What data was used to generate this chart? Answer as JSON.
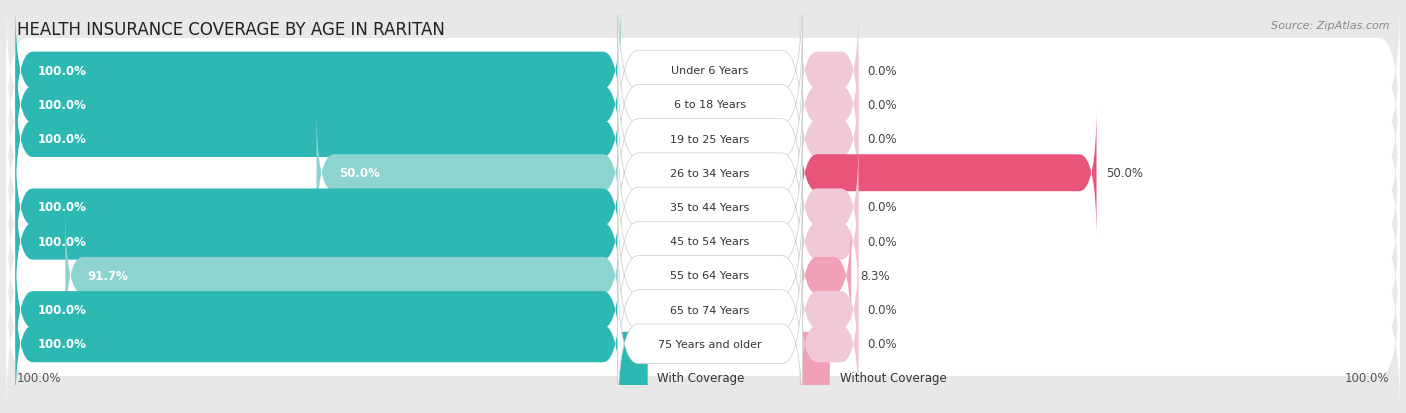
{
  "title": "HEALTH INSURANCE COVERAGE BY AGE IN RARITAN",
  "source": "Source: ZipAtlas.com",
  "categories": [
    "Under 6 Years",
    "6 to 18 Years",
    "19 to 25 Years",
    "26 to 34 Years",
    "35 to 44 Years",
    "45 to 54 Years",
    "55 to 64 Years",
    "65 to 74 Years",
    "75 Years and older"
  ],
  "with_coverage": [
    100.0,
    100.0,
    100.0,
    50.0,
    100.0,
    100.0,
    91.7,
    100.0,
    100.0
  ],
  "without_coverage": [
    0.0,
    0.0,
    0.0,
    50.0,
    0.0,
    0.0,
    8.3,
    0.0,
    0.0
  ],
  "color_with_full": "#2eb8b3",
  "color_with_partial": "#8dd4d1",
  "color_without_strong": "#e8547a",
  "color_without_weak": "#f2a0b8",
  "color_without_zero": "#f0c8d8",
  "bg_color": "#e8e8e8",
  "row_bg_color": "#ffffff",
  "title_fontsize": 12,
  "label_fontsize": 8.5,
  "source_fontsize": 8,
  "legend_fontsize": 8.5
}
